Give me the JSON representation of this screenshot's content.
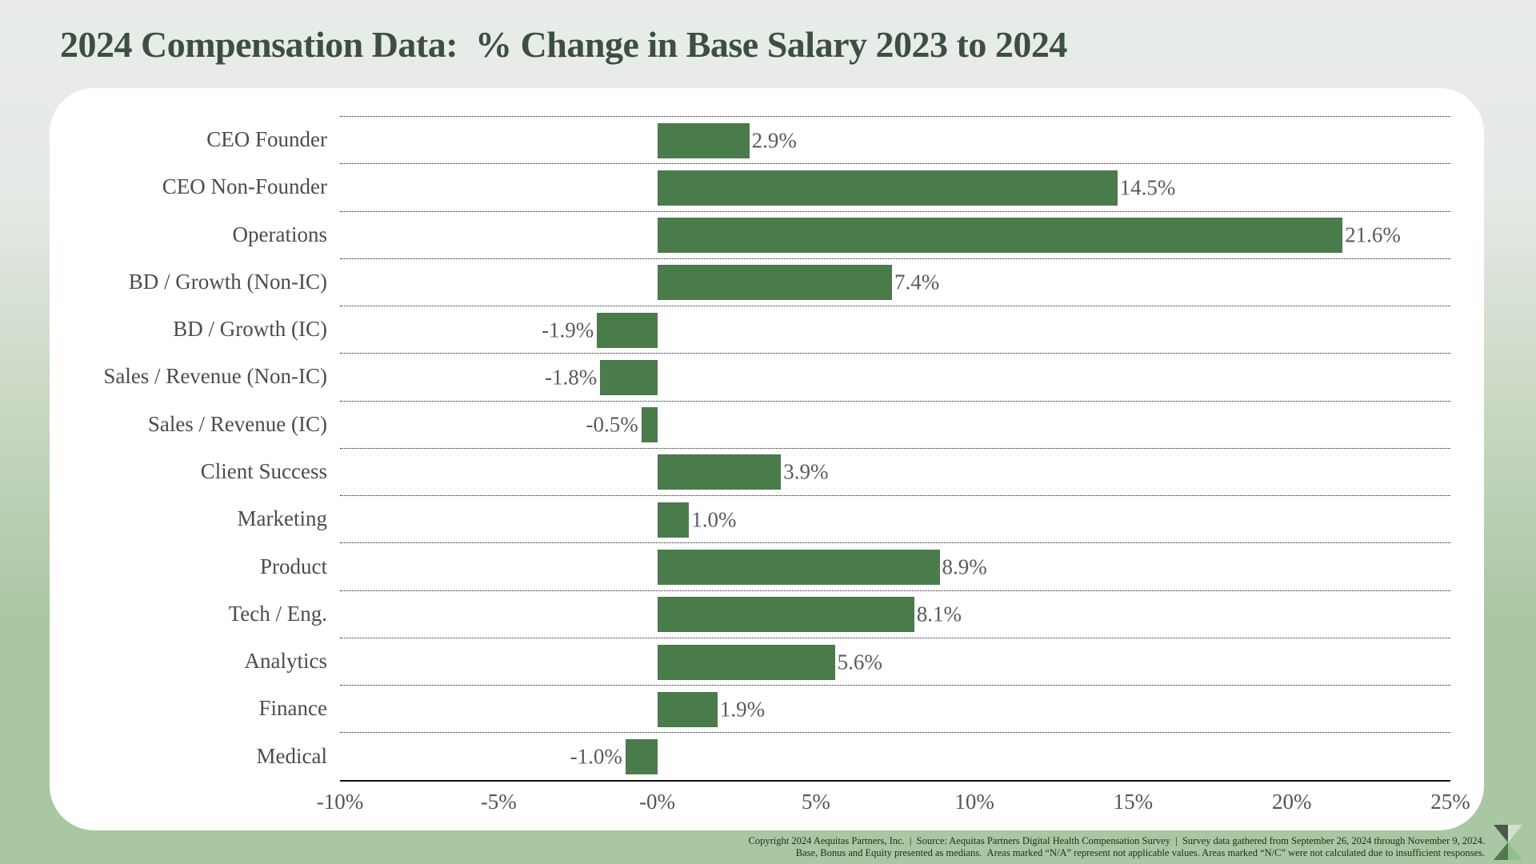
{
  "page": {
    "title": "2024 Compensation Data:  % Change in Base Salary 2023 to 2024"
  },
  "chart_data": {
    "type": "bar",
    "orientation": "horizontal",
    "title": "2024 Compensation Data: % Change in Base Salary 2023 to 2024",
    "categories": [
      "CEO Founder",
      "CEO Non-Founder",
      "Operations",
      "BD / Growth (Non-IC)",
      "BD / Growth (IC)",
      "Sales / Revenue (Non-IC)",
      "Sales / Revenue (IC)",
      "Client Success",
      "Marketing",
      "Product",
      "Tech / Eng.",
      "Analytics",
      "Finance",
      "Medical"
    ],
    "values": [
      2.9,
      14.5,
      21.6,
      7.4,
      -1.9,
      -1.8,
      -0.5,
      3.9,
      1.0,
      8.9,
      8.1,
      5.6,
      1.9,
      -1.0
    ],
    "value_labels": [
      "2.9%",
      "14.5%",
      "21.6%",
      "7.4%",
      "-1.9%",
      "-1.8%",
      "-0.5%",
      "3.9%",
      "1.0%",
      "8.9%",
      "8.1%",
      "5.6%",
      "1.9%",
      "-1.0%"
    ],
    "xlim": [
      -10,
      25
    ],
    "x_ticks": [
      -10,
      -5,
      0,
      5,
      10,
      15,
      20,
      25
    ],
    "x_tick_labels": [
      "-10%",
      "-5%",
      "-0%",
      "5%",
      "10%",
      "15%",
      "20%",
      "25%"
    ],
    "bar_color": "#4a7b4b",
    "grid": "dotted horizontal separators above each row, solid baseline axis",
    "legend": "none"
  },
  "footer": {
    "line1": "Copyright 2024 Aequitas Partners, Inc.  |  Source: Aequitas Partners Digital Health Compensation Survey  |  Survey data gathered from September 26, 2024 through November 9, 2024.",
    "line2": "Base, Bonus and Equity presented as medians.  Areas marked “N/A” represent not applicable values. Areas marked “N/C” were not calculated due to insufficient responses.",
    "logo_name": "aequitas-partners-logo"
  },
  "colors": {
    "bar": "#4a7b4b",
    "title": "#3c4f41",
    "panel": "#ffffff",
    "background_top": "#e9ece9",
    "background_bottom": "#a9c7a2",
    "logo_dark": "#4c564b",
    "logo_pale": "#cfe3c8",
    "logo_green": "#4f7a4c",
    "logo_light_green": "#8fc18c"
  }
}
